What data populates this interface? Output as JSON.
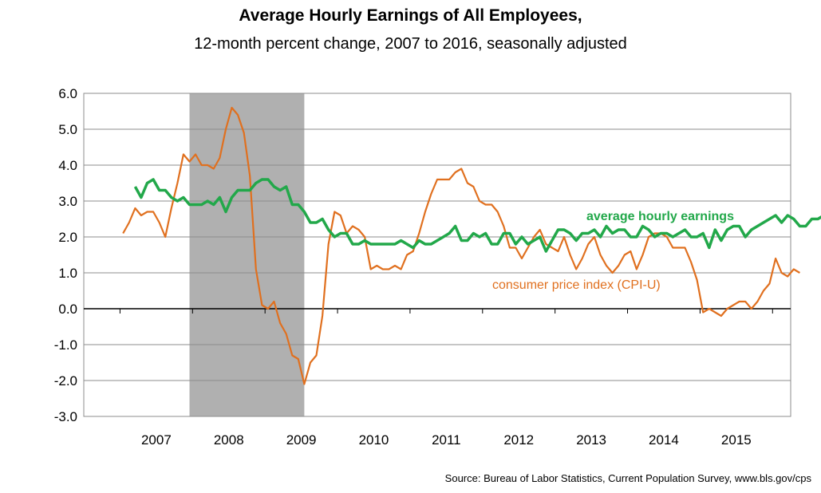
{
  "chart_data": {
    "type": "line",
    "title": "Average Hourly Earnings of All Employees,",
    "subtitle": "12-month percent change, 2007 to 2016, seasonally adjusted",
    "source": "Source: Bureau of Labor Statistics, Current Population Survey, www.bls.gov/cps",
    "ylim": [
      -3.0,
      6.0
    ],
    "y_ticks": [
      "6.0",
      "5.0",
      "4.0",
      "3.0",
      "2.0",
      "1.0",
      "0.0",
      "-1.0",
      "-2.0",
      "-3.0"
    ],
    "x_tick_labels": [
      "2007",
      "2008",
      "2009",
      "2010",
      "2011",
      "2012",
      "2013",
      "2014",
      "2015"
    ],
    "grid": true,
    "recession_shading": {
      "start": "2007-12",
      "end": "2009-06",
      "color": "#b0b0b0"
    },
    "series": [
      {
        "name": "average hourly earnings",
        "color": "#22a84a",
        "start": "2007-03",
        "values": [
          3.4,
          3.1,
          3.5,
          3.6,
          3.3,
          3.3,
          3.1,
          3.0,
          3.1,
          2.9,
          2.9,
          2.9,
          3.0,
          2.9,
          3.1,
          2.7,
          3.1,
          3.3,
          3.3,
          3.3,
          3.5,
          3.6,
          3.6,
          3.4,
          3.3,
          3.4,
          2.9,
          2.9,
          2.7,
          2.4,
          2.4,
          2.5,
          2.2,
          2.0,
          2.1,
          2.1,
          1.8,
          1.8,
          1.9,
          1.8,
          1.8,
          1.8,
          1.8,
          1.8,
          1.9,
          1.8,
          1.7,
          1.9,
          1.8,
          1.8,
          1.9,
          2.0,
          2.1,
          2.3,
          1.9,
          1.9,
          2.1,
          2.0,
          2.1,
          1.8,
          1.8,
          2.1,
          2.1,
          1.8,
          2.0,
          1.8,
          1.9,
          2.0,
          1.6,
          1.9,
          2.2,
          2.2,
          2.1,
          1.9,
          2.1,
          2.1,
          2.2,
          2.0,
          2.3,
          2.1,
          2.2,
          2.2,
          2.0,
          2.0,
          2.3,
          2.2,
          2.0,
          2.1,
          2.1,
          2.0,
          2.1,
          2.2,
          2.0,
          2.0,
          2.1,
          1.7,
          2.2,
          1.9,
          2.2,
          2.3,
          2.3,
          2.0,
          2.2,
          2.3,
          2.4,
          2.5,
          2.6,
          2.4,
          2.6,
          2.5,
          2.3,
          2.3,
          2.5,
          2.5,
          2.6
        ]
      },
      {
        "name": "consumer price index (CPI-U)",
        "color": "#e0701f",
        "start": "2007-01",
        "values": [
          2.1,
          2.4,
          2.8,
          2.6,
          2.7,
          2.7,
          2.4,
          2.0,
          2.8,
          3.5,
          4.3,
          4.1,
          4.3,
          4.0,
          4.0,
          3.9,
          4.2,
          5.0,
          5.6,
          5.4,
          4.9,
          3.7,
          1.1,
          0.1,
          0.0,
          0.2,
          -0.4,
          -0.7,
          -1.3,
          -1.4,
          -2.1,
          -1.5,
          -1.3,
          -0.2,
          1.8,
          2.7,
          2.6,
          2.1,
          2.3,
          2.2,
          2.0,
          1.1,
          1.2,
          1.1,
          1.1,
          1.2,
          1.1,
          1.5,
          1.6,
          2.1,
          2.7,
          3.2,
          3.6,
          3.6,
          3.6,
          3.8,
          3.9,
          3.5,
          3.4,
          3.0,
          2.9,
          2.9,
          2.7,
          2.3,
          1.7,
          1.7,
          1.4,
          1.7,
          2.0,
          2.2,
          1.8,
          1.7,
          1.6,
          2.0,
          1.5,
          1.1,
          1.4,
          1.8,
          2.0,
          1.5,
          1.2,
          1.0,
          1.2,
          1.5,
          1.6,
          1.1,
          1.5,
          2.0,
          2.1,
          2.1,
          2.0,
          1.7,
          1.7,
          1.7,
          1.3,
          0.8,
          -0.1,
          0.0,
          -0.1,
          -0.2,
          0.0,
          0.1,
          0.2,
          0.2,
          0.0,
          0.2,
          0.5,
          0.7,
          1.4,
          1.0,
          0.9,
          1.1,
          1.0
        ]
      }
    ],
    "annotations": [
      {
        "text": "average hourly earnings",
        "series": 0
      },
      {
        "text": "consumer price index (CPI-U)",
        "series": 1
      }
    ]
  }
}
